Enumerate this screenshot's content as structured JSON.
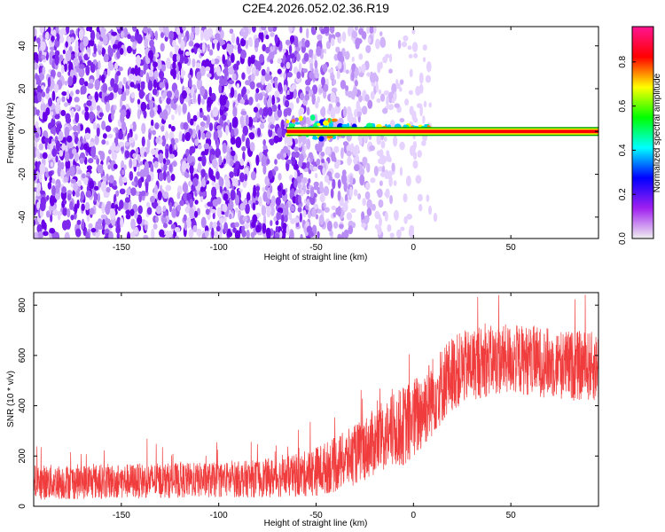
{
  "figure": {
    "title": "C2E4.2026.052.02.36.R19"
  },
  "chart_data": [
    {
      "type": "heatmap",
      "title": "C2E4.2026.052.02.36.R19",
      "xlabel": "Height of straight line (km)",
      "ylabel": "Frequency (Hz)",
      "xlim": [
        -195,
        95
      ],
      "ylim": [
        -50,
        49
      ],
      "x_ticks": [
        -150,
        -100,
        -50,
        0,
        50
      ],
      "y_ticks": [
        -40,
        -20,
        0,
        20,
        40
      ],
      "colorbar": {
        "label": "Normalized spectral amplitude",
        "range": [
          0,
          0.96
        ],
        "ticks": [
          0.0,
          0.2,
          0.4,
          0.6,
          0.8
        ],
        "colormap": [
          "#f0f0f0",
          "#a020f0",
          "#0000ff",
          "#00ffff",
          "#00ff00",
          "#ffff00",
          "#ff0000",
          "#ff1493"
        ]
      },
      "features": {
        "noise_region_x": [
          -195,
          -60
        ],
        "fading_noise_x": [
          -60,
          2
        ],
        "carrier_line": {
          "frequency_hz": 0,
          "x_start": -65,
          "x_end": 95,
          "color": "#ff0000"
        }
      },
      "grid": false
    },
    {
      "type": "line",
      "xlabel": "Height of straight line (km)",
      "ylabel": "SNR (10 * v/v)",
      "xlim": [
        -195,
        95
      ],
      "ylim": [
        0,
        850
      ],
      "x_ticks": [
        -150,
        -100,
        -50,
        0,
        50
      ],
      "y_ticks": [
        0,
        200,
        400,
        600,
        800
      ],
      "color": "#f03c3c",
      "envelope": {
        "x": [
          -195,
          -150,
          -100,
          -80,
          -60,
          -50,
          -40,
          -30,
          -20,
          -10,
          -5,
          0,
          10,
          20,
          30,
          40,
          50,
          60,
          70,
          80,
          95
        ],
        "mean": [
          95,
          100,
          105,
          110,
          120,
          140,
          165,
          205,
          255,
          300,
          320,
          340,
          440,
          530,
          565,
          580,
          585,
          580,
          570,
          560,
          555
        ],
        "amplitude": [
          70,
          70,
          70,
          75,
          85,
          100,
          110,
          120,
          135,
          150,
          160,
          170,
          160,
          150,
          145,
          140,
          140,
          140,
          140,
          140,
          140
        ]
      },
      "grid": false
    }
  ]
}
